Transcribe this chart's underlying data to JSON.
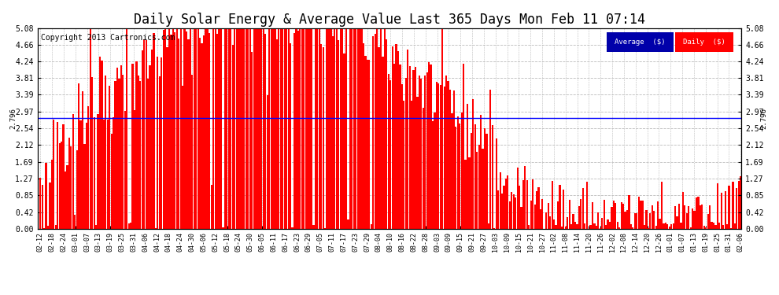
{
  "title": "Daily Solar Energy & Average Value Last 365 Days Mon Feb 11 07:14",
  "copyright": "Copyright 2013 Cartronics.com",
  "average_value": 2.796,
  "average_label": "2.796",
  "ylim": [
    0.0,
    5.08
  ],
  "yticks": [
    0.0,
    0.42,
    0.85,
    1.27,
    1.69,
    2.12,
    2.54,
    2.97,
    3.39,
    3.81,
    4.24,
    4.66,
    5.08
  ],
  "bar_color": "#FF0000",
  "avg_line_color": "#0000FF",
  "background_color": "#FFFFFF",
  "grid_color": "#BBBBBB",
  "legend_avg_bg": "#0000AA",
  "legend_daily_bg": "#FF0000",
  "legend_text_color": "#FFFFFF",
  "title_fontsize": 12,
  "copyright_fontsize": 7,
  "tick_fontsize": 7,
  "xlabel_dates": [
    "02-12",
    "02-18",
    "02-24",
    "03-01",
    "03-07",
    "03-13",
    "03-19",
    "03-25",
    "03-31",
    "04-06",
    "04-12",
    "04-18",
    "04-24",
    "04-30",
    "05-06",
    "05-12",
    "05-18",
    "05-24",
    "05-30",
    "06-05",
    "06-11",
    "06-17",
    "06-23",
    "06-29",
    "07-05",
    "07-11",
    "07-17",
    "07-23",
    "07-29",
    "08-04",
    "08-10",
    "08-16",
    "08-22",
    "08-28",
    "09-03",
    "09-09",
    "09-15",
    "09-21",
    "09-27",
    "10-03",
    "10-09",
    "10-15",
    "10-21",
    "10-27",
    "11-02",
    "11-08",
    "11-14",
    "11-20",
    "11-26",
    "12-02",
    "12-08",
    "12-14",
    "12-20",
    "12-26",
    "01-01",
    "01-07",
    "01-13",
    "01-19",
    "01-25",
    "01-31",
    "02-06"
  ],
  "num_bars": 365,
  "seed": 42
}
